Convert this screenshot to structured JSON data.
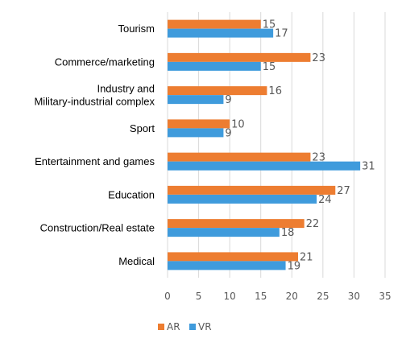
{
  "chart_data": {
    "type": "bar",
    "orientation": "horizontal",
    "categories": [
      [
        "Tourism"
      ],
      [
        "Commerce/marketing"
      ],
      [
        "Industry and",
        "Military-industrial complex"
      ],
      [
        "Sport"
      ],
      [
        "Entertainment and games"
      ],
      [
        "Education"
      ],
      [
        "Construction/Real estate"
      ],
      [
        "Medical"
      ]
    ],
    "series": [
      {
        "name": "AR",
        "color": "#ED7D31",
        "values": [
          15,
          23,
          16,
          10,
          23,
          27,
          22,
          21
        ]
      },
      {
        "name": "VR",
        "color": "#3F9BDC",
        "values": [
          17,
          15,
          9,
          9,
          31,
          24,
          18,
          19
        ]
      }
    ],
    "xlim": [
      0,
      35
    ],
    "xticks": [
      "0",
      "5",
      "10",
      "15",
      "20",
      "25",
      "30",
      "35"
    ],
    "grid": true,
    "legend_position": "bottom-left"
  }
}
